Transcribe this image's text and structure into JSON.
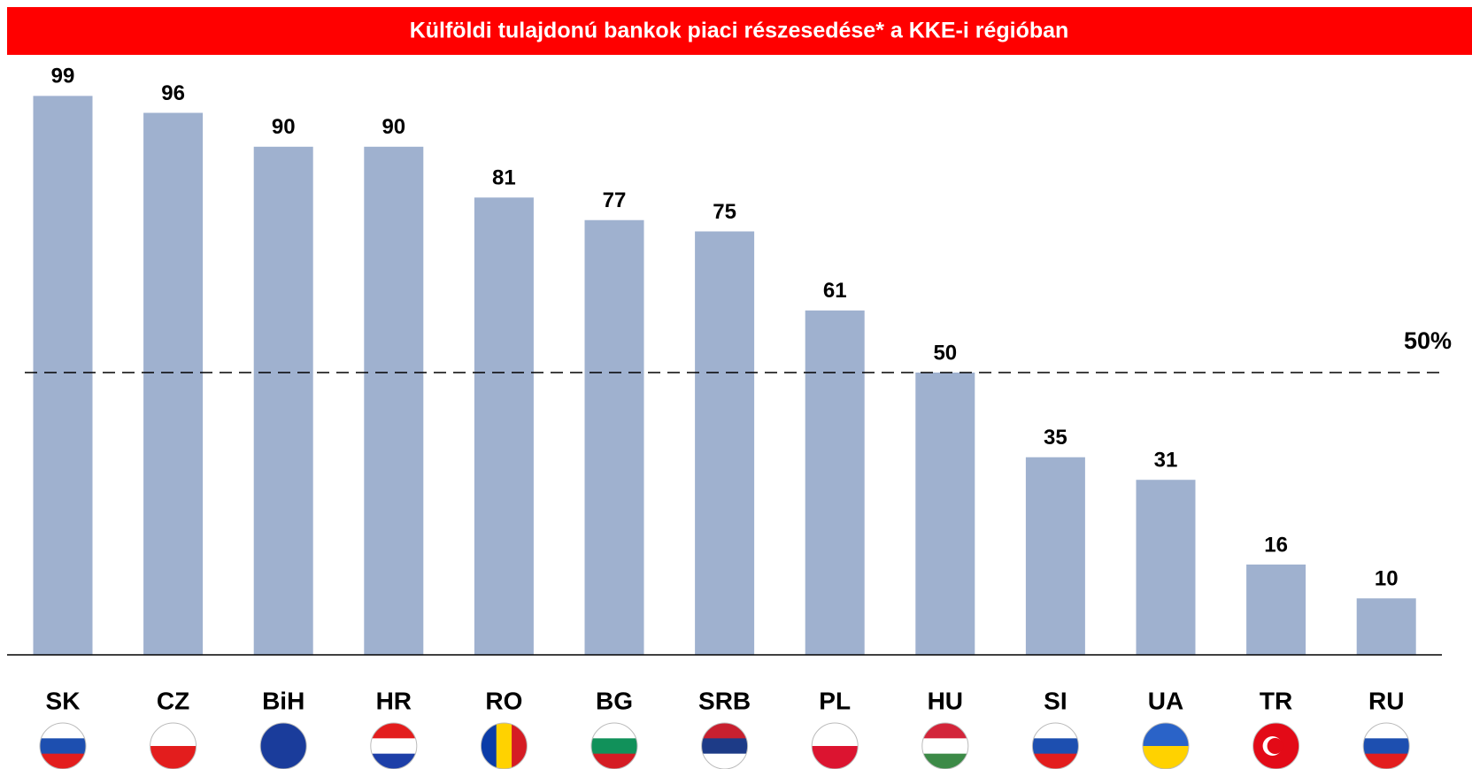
{
  "chart_data": {
    "type": "bar",
    "title": "Külföldi tulajdonú bankok piaci részesedése* a KKE-i régióban",
    "categories": [
      "SK",
      "CZ",
      "BiH",
      "HR",
      "RO",
      "BG",
      "SRB",
      "PL",
      "HU",
      "SI",
      "UA",
      "TR",
      "RU"
    ],
    "values": [
      99,
      96,
      90,
      90,
      81,
      77,
      75,
      61,
      50,
      35,
      31,
      16,
      10
    ],
    "color": "#9fb1cf",
    "ylim": [
      0,
      100
    ],
    "reference_line": {
      "value": 50,
      "label": "50%"
    }
  }
}
